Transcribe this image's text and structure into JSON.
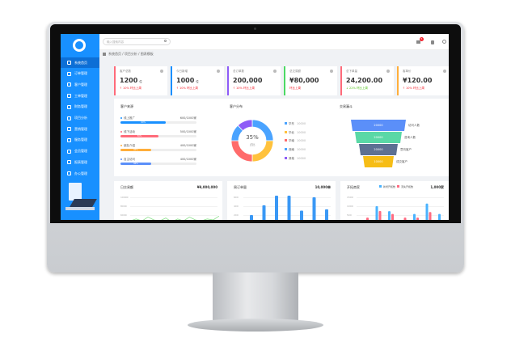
{
  "colors": {
    "primary": "#1890ff",
    "red": "#ff6b7a",
    "green": "#4cd964",
    "purple": "#8e5cf7",
    "orange": "#ffae3b",
    "teal": "#5ad8a6",
    "slate": "#5d7092",
    "yellow": "#f6bd16"
  },
  "sidebar": {
    "items": [
      {
        "label": "系统首页",
        "icon": "home-icon"
      },
      {
        "label": "订单管理",
        "icon": "document-icon"
      },
      {
        "label": "客户管理",
        "icon": "user-icon"
      },
      {
        "label": "工单管理",
        "icon": "calendar-icon"
      },
      {
        "label": "财务管理",
        "icon": "wallet-icon"
      },
      {
        "label": "项目分析",
        "icon": "chart-icon"
      },
      {
        "label": "营销管理",
        "icon": "badge-icon"
      },
      {
        "label": "服务管理",
        "icon": "gear-icon"
      },
      {
        "label": "会员管理",
        "icon": "inbox-icon"
      },
      {
        "label": "报表管理",
        "icon": "report-icon"
      },
      {
        "label": "办公管理",
        "icon": "monitor-icon"
      }
    ]
  },
  "topbar": {
    "search_placeholder": "输入搜索内容",
    "notification_count": "5"
  },
  "breadcrumb": "系统首页 / 项目分析 / 图表模板",
  "cards": [
    {
      "label": "客户总数",
      "value": "1200",
      "unit": "位",
      "trend": "↑ 10% 环比上周",
      "color": "#ff6b7a"
    },
    {
      "label": "今日新增",
      "value": "1000",
      "unit": "位",
      "trend": "↑ 10% 环比上周",
      "color": "#1890ff"
    },
    {
      "label": "总订单数",
      "value": "200,000",
      "unit": "",
      "trend": "↑ 10% 环比上周",
      "color": "#8e5cf7"
    },
    {
      "label": "总交易额",
      "value": "¥80,000",
      "unit": "",
      "trend": "环比上周",
      "color": "#4cd964"
    },
    {
      "label": "总下单量",
      "value": "24,200.00",
      "unit": "",
      "trend": "↓ 22% 环比上周",
      "color": "#ff6b7a"
    },
    {
      "label": "客单价",
      "value": "¥120.00",
      "unit": "",
      "trend": "↑ 10% 环比上周",
      "color": "#ffae3b"
    }
  ],
  "progress": {
    "title": "客户来源",
    "items": [
      {
        "label": "线上推广",
        "value": "600/1000",
        "unit": "家",
        "pct": 60,
        "color": "#1890ff"
      },
      {
        "label": "线下活动",
        "value": "500/1000",
        "unit": "家",
        "pct": 50,
        "color": "#ff6b7a"
      },
      {
        "label": "朋友介绍",
        "value": "400/1000",
        "unit": "家",
        "pct": 40,
        "color": "#ffae3b"
      },
      {
        "label": "自主访问",
        "value": "400/1000",
        "unit": "家",
        "pct": 40,
        "color": "#5b8ff9"
      }
    ]
  },
  "donut": {
    "title": "客户分布",
    "center_value": "35%",
    "center_label": "占比",
    "items": [
      {
        "label": "华东",
        "value": "10000",
        "color": "#4aa3ff",
        "share": 25
      },
      {
        "label": "华北",
        "value": "10000",
        "color": "#ffc23d",
        "share": 25
      },
      {
        "label": "华南",
        "value": "10000",
        "color": "#ff6b6b",
        "share": 25
      },
      {
        "label": "西南",
        "value": "10000",
        "color": "#4aa3ff",
        "share": 13
      },
      {
        "label": "其他",
        "value": "10000",
        "color": "#8e5cf7",
        "share": 12
      }
    ]
  },
  "funnel": {
    "title": "交易漏斗",
    "stages": [
      {
        "value": "20000",
        "label": "访问人数",
        "color": "#5b8ff9"
      },
      {
        "value": "20000",
        "label": "咨询人数",
        "color": "#5ad8a6"
      },
      {
        "value": "20000",
        "label": "意向客户",
        "color": "#5d7092"
      },
      {
        "value": "10000",
        "label": "成交客户",
        "color": "#f6bd16"
      }
    ]
  },
  "chart_data": [
    {
      "type": "line",
      "title": "日交易额",
      "total": "¥9,000,000",
      "yticks": [
        "10000",
        "8000",
        "6000"
      ],
      "values": [
        4,
        6,
        4,
        8,
        5,
        4,
        7,
        3,
        6,
        4,
        8,
        5,
        4,
        6,
        5,
        9
      ]
    },
    {
      "type": "bar",
      "title": "周订单量",
      "total": "10,000单",
      "yticks": [
        "600",
        "400",
        "200"
      ],
      "values": [
        200,
        420,
        700,
        700,
        300,
        600,
        330
      ]
    },
    {
      "type": "bar",
      "title": "开拓商家",
      "total": "1,000家",
      "yticks": [
        "1500",
        "1000",
        "500"
      ],
      "series": [
        {
          "name": "新增开拓数",
          "values": [
            0,
            1000,
            720,
            0,
            560,
            1150,
            560
          ]
        },
        {
          "name": "流失开拓数",
          "values": [
            360,
            730,
            560,
            360,
            360,
            670,
            180
          ]
        }
      ]
    }
  ]
}
